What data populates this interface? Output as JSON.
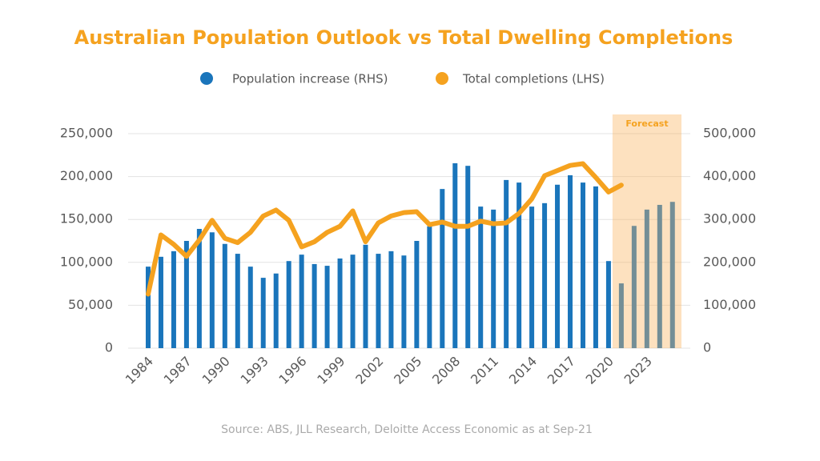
{
  "chart_data": {
    "type": "bar-line",
    "title": "Australian Population Outlook vs Total Dwelling Completions",
    "source": "Source: ABS, JLL Research, Deloitte Access Economic as at Sep-21",
    "annotation": "Forecast",
    "categories": [
      "1984",
      null,
      null,
      "1987",
      null,
      null,
      "1990",
      null,
      null,
      "1993",
      null,
      null,
      "1996",
      null,
      null,
      "1999",
      null,
      null,
      "2002",
      null,
      null,
      "2005",
      null,
      null,
      "2008",
      null,
      null,
      "2011",
      null,
      null,
      "2014",
      null,
      null,
      "2017",
      null,
      null,
      "2020",
      null,
      null,
      "2023",
      null,
      null
    ],
    "series": [
      {
        "name": "Population increase (RHS)",
        "type": "bar",
        "axis": "y2",
        "color": "#1a75bb",
        "values": [
          190000,
          213000,
          226000,
          250000,
          278000,
          270000,
          243000,
          220000,
          190000,
          164000,
          174000,
          203000,
          218000,
          196000,
          192000,
          209000,
          218000,
          241000,
          220000,
          226000,
          216000,
          250000,
          284000,
          371000,
          431000,
          425000,
          330000,
          323000,
          392000,
          386000,
          330000,
          338000,
          381000,
          403000,
          386000,
          377000,
          203000,
          151000,
          285000,
          323000,
          334000,
          341000
        ]
      },
      {
        "name": "Total completions (LHS)",
        "type": "line",
        "axis": "y",
        "color": "#f5a21f",
        "values": [
          63000,
          132000,
          121000,
          107000,
          126000,
          149000,
          128000,
          123000,
          135000,
          154000,
          161000,
          149000,
          118000,
          124000,
          135000,
          142000,
          160000,
          124000,
          146000,
          154000,
          158000,
          159000,
          144000,
          147000,
          142000,
          142000,
          148000,
          145000,
          146000,
          157000,
          174000,
          201000,
          207000,
          213000,
          215000,
          199000,
          182000,
          190000,
          null,
          null,
          null,
          null
        ]
      }
    ],
    "ylim": [
      0,
      250000
    ],
    "yticks": [
      0,
      {
        "value": 50000,
        "label": "50,000"
      },
      {
        "value": 100000,
        "label": "100,000"
      },
      {
        "value": 150000,
        "label": "150,000"
      },
      {
        "value": 200000,
        "label": "200,000"
      },
      {
        "value": 250000,
        "label": "250,000"
      }
    ],
    "y2lim": [
      0,
      500000
    ],
    "y2ticks": [
      0,
      {
        "value": 100000,
        "label": "100,000"
      },
      {
        "value": 200000,
        "label": "200,000"
      },
      {
        "value": 300000,
        "label": "300,000"
      },
      {
        "value": 400000,
        "label": "400,000"
      },
      {
        "value": 500000,
        "label": "500,000"
      }
    ],
    "grid": true
  }
}
